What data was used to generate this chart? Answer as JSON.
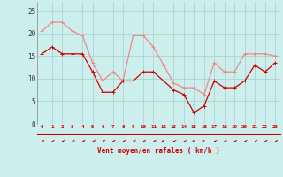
{
  "x": [
    0,
    1,
    2,
    3,
    4,
    5,
    6,
    7,
    8,
    9,
    10,
    11,
    12,
    13,
    14,
    15,
    16,
    17,
    18,
    19,
    20,
    21,
    22,
    23
  ],
  "rafales": [
    20.5,
    22.5,
    22.5,
    20.5,
    19.5,
    13.5,
    9.5,
    11.5,
    9.5,
    19.5,
    19.5,
    17.0,
    13.0,
    9.0,
    8.0,
    8.0,
    6.5,
    13.5,
    11.5,
    11.5,
    15.5,
    15.5,
    15.5,
    15.0
  ],
  "moyen": [
    15.5,
    17.0,
    15.5,
    15.5,
    15.5,
    11.5,
    7.0,
    7.0,
    9.5,
    9.5,
    11.5,
    11.5,
    9.5,
    7.5,
    6.5,
    2.5,
    4.0,
    9.5,
    8.0,
    8.0,
    9.5,
    13.0,
    11.5,
    13.5
  ],
  "bg_color": "#cceeed",
  "grid_color": "#aad4d2",
  "line_color_moyen": "#cc0000",
  "line_color_rafales": "#ee8888",
  "xlabel": "Vent moyen/en rafales ( km/h )",
  "ylim": [
    0,
    27
  ],
  "yticks": [
    0,
    5,
    10,
    15,
    20,
    25
  ],
  "arrow_color": "#cc0000",
  "axis_color": "#cc0000"
}
